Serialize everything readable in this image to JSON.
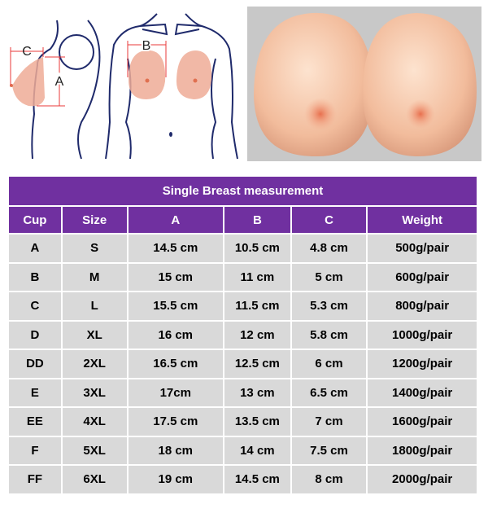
{
  "diagram": {
    "labels": {
      "a": "A",
      "b": "B",
      "c": "C"
    }
  },
  "colors": {
    "header": "#7030a0",
    "cell": "#d9d9d9",
    "outline": "#1f2a6b",
    "breast": "#eeab96"
  },
  "table": {
    "title": "Single Breast measurement",
    "headers": [
      "Cup",
      "Size",
      "A",
      "B",
      "C",
      "Weight"
    ],
    "rows": [
      [
        "A",
        "S",
        "14.5 cm",
        "10.5 cm",
        "4.8 cm",
        "500g/pair"
      ],
      [
        "B",
        "M",
        "15 cm",
        "11 cm",
        "5 cm",
        "600g/pair"
      ],
      [
        "C",
        "L",
        "15.5 cm",
        "11.5 cm",
        "5.3 cm",
        "800g/pair"
      ],
      [
        "D",
        "XL",
        "16 cm",
        "12 cm",
        "5.8 cm",
        "1000g/pair"
      ],
      [
        "DD",
        "2XL",
        "16.5 cm",
        "12.5 cm",
        "6 cm",
        "1200g/pair"
      ],
      [
        "E",
        "3XL",
        "17cm",
        "13 cm",
        "6.5 cm",
        "1400g/pair"
      ],
      [
        "EE",
        "4XL",
        "17.5 cm",
        "13.5 cm",
        "7 cm",
        "1600g/pair"
      ],
      [
        "F",
        "5XL",
        "18 cm",
        "14 cm",
        "7.5 cm",
        "1800g/pair"
      ],
      [
        "FF",
        "6XL",
        "19 cm",
        "14.5 cm",
        "8 cm",
        "2000g/pair"
      ]
    ]
  }
}
